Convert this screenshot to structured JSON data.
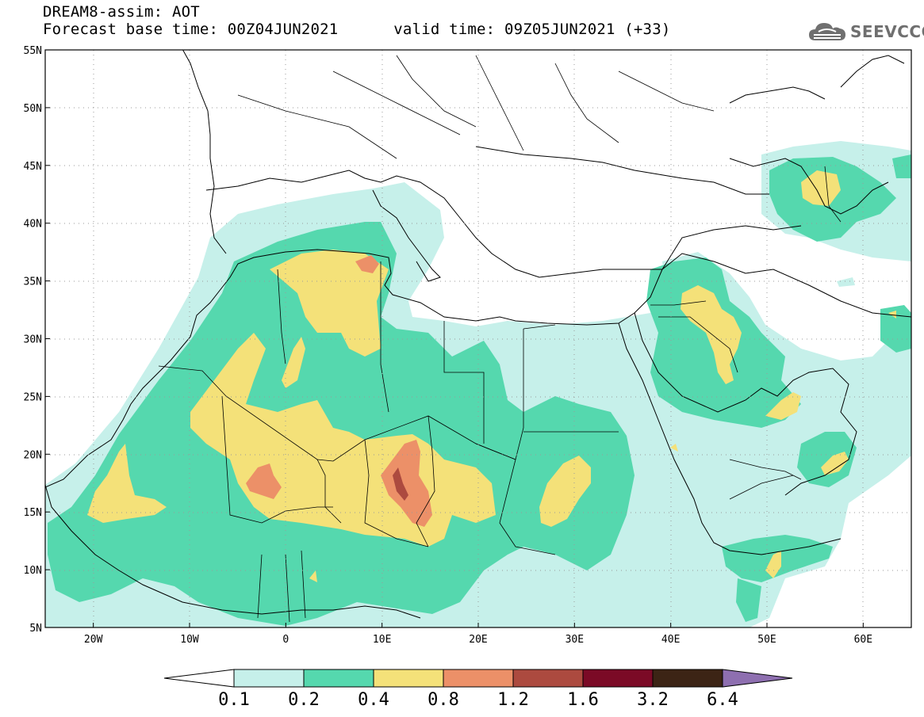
{
  "header": {
    "title": "DREAM8-assim: AOT",
    "base_time_label": "Forecast base time: 00Z04JUN2021",
    "valid_time_label": "valid time: 09Z05JUN2021 (+33)"
  },
  "logo": {
    "text": "SEEVCCC",
    "icon": "cloud-icon"
  },
  "map": {
    "lon_range": [
      -25,
      65
    ],
    "lat_range": [
      5,
      55
    ],
    "grid": "dotted",
    "lat_ticks": [
      {
        "value": 55,
        "label": "55N"
      },
      {
        "value": 50,
        "label": "50N"
      },
      {
        "value": 45,
        "label": "45N"
      },
      {
        "value": 40,
        "label": "40N"
      },
      {
        "value": 35,
        "label": "35N"
      },
      {
        "value": 30,
        "label": "30N"
      },
      {
        "value": 25,
        "label": "25N"
      },
      {
        "value": 20,
        "label": "20N"
      },
      {
        "value": 15,
        "label": "15N"
      },
      {
        "value": 10,
        "label": "10N"
      },
      {
        "value": 5,
        "label": "5N"
      }
    ],
    "lon_ticks": [
      {
        "value": -20,
        "label": "20W"
      },
      {
        "value": -10,
        "label": "10W"
      },
      {
        "value": 0,
        "label": "0"
      },
      {
        "value": 10,
        "label": "10E"
      },
      {
        "value": 20,
        "label": "20E"
      },
      {
        "value": 30,
        "label": "30E"
      },
      {
        "value": 40,
        "label": "40E"
      },
      {
        "value": 50,
        "label": "50E"
      },
      {
        "value": 60,
        "label": "60E"
      }
    ]
  },
  "colorbar": {
    "bins": [
      {
        "color": "#c6f0ea"
      },
      {
        "color": "#55d8ae"
      },
      {
        "color": "#f4e179"
      },
      {
        "color": "#ec9068"
      },
      {
        "color": "#ac4a3f"
      },
      {
        "color": "#7b0a26"
      },
      {
        "color": "#3c2415"
      }
    ],
    "under_color": "#ffffff",
    "over_color": "#8e6fb0",
    "labels": [
      "0.1",
      "0.2",
      "0.4",
      "0.8",
      "1.2",
      "1.6",
      "3.2",
      "6.4"
    ]
  }
}
